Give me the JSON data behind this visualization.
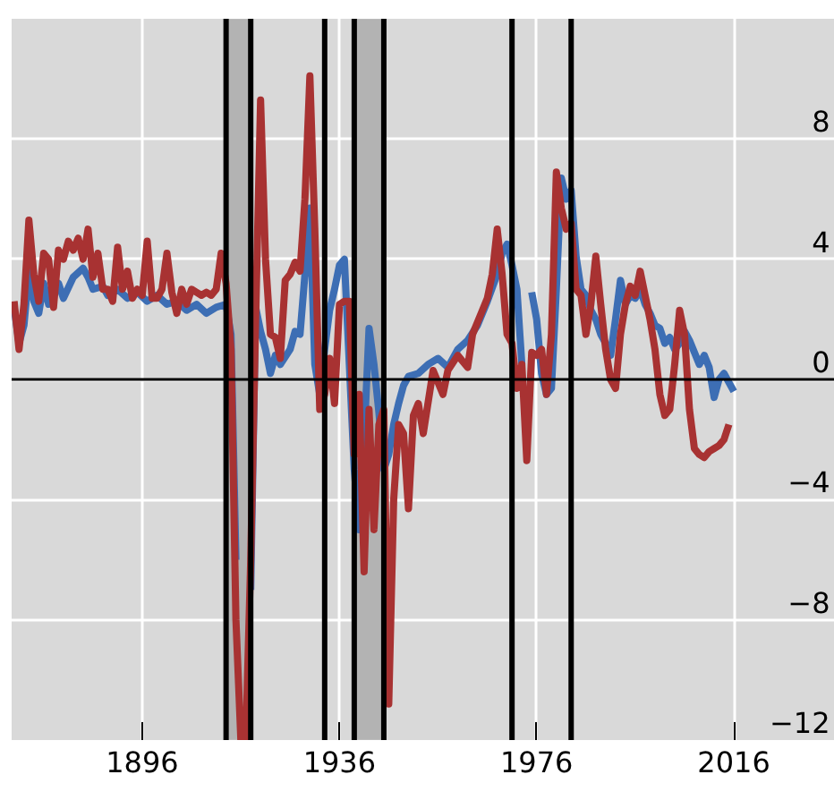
{
  "chart_data": {
    "type": "line",
    "xlim": [
      1869.5,
      2036.5
    ],
    "ylim": [
      -12,
      12
    ],
    "xticks": [
      1896,
      1936,
      1976,
      2016
    ],
    "yticks": [
      -12,
      -8,
      -4,
      0,
      4,
      8
    ],
    "grid": true,
    "bands": [
      {
        "axis": "x",
        "from": 1913,
        "to": 1918,
        "color": "#b3b3b3"
      },
      {
        "axis": "x",
        "from": 1939,
        "to": 1945,
        "color": "#b3b3b3"
      }
    ],
    "ref_lines": [
      {
        "axis": "y",
        "value": 0,
        "color": "#000000"
      },
      {
        "axis": "x",
        "value": 1913,
        "color": "#000000"
      },
      {
        "axis": "x",
        "value": 1918,
        "color": "#000000"
      },
      {
        "axis": "x",
        "value": 1933,
        "color": "#000000"
      },
      {
        "axis": "x",
        "value": 1939,
        "color": "#000000"
      },
      {
        "axis": "x",
        "value": 1945,
        "color": "#000000"
      },
      {
        "axis": "x",
        "value": 1971,
        "color": "#000000"
      },
      {
        "axis": "x",
        "value": 1983,
        "color": "#000000"
      }
    ],
    "series": [
      {
        "color": "#3d6eb4",
        "x": [
          1870,
          1871,
          1872,
          1873,
          1874,
          1875,
          1876,
          1877,
          1879,
          1880,
          1882,
          1884,
          1885,
          1886,
          1888,
          1889,
          1891,
          1893,
          1895,
          1897,
          1899,
          1901,
          1903,
          1905,
          1907,
          1909,
          1911,
          1913,
          1914,
          1915,
          1916,
          1917,
          1918,
          1919,
          1920,
          1921,
          1922,
          1923,
          1924,
          1926,
          1927,
          1928,
          1929,
          1930,
          1931,
          1932,
          1933,
          1934,
          1935,
          1936,
          1937,
          1938,
          1939,
          1940,
          1941,
          1942,
          1943,
          1944,
          1945,
          1946,
          1947,
          1948,
          1949,
          1950,
          1952,
          1954,
          1956,
          1958,
          1960,
          1962,
          1964,
          1966,
          1968,
          1969,
          1970,
          1971,
          1972,
          1973,
          1974,
          1975,
          1976,
          1977,
          1978,
          1979,
          1980,
          1981,
          1982,
          1983,
          1984,
          1985,
          1986,
          1987,
          1988,
          1989,
          1990,
          1991,
          1992,
          1993,
          1994,
          1995,
          1996,
          1997,
          1998,
          1999,
          2000,
          2001,
          2002,
          2003,
          2004,
          2005,
          2006,
          2007,
          2008,
          2009,
          2010,
          2011,
          2012,
          2013,
          2014,
          2015,
          2016
        ],
        "values": [
          2.4,
          1.2,
          1.8,
          3.6,
          2.6,
          2.2,
          3.2,
          2.5,
          3.2,
          2.7,
          3.4,
          3.7,
          3.4,
          3.0,
          3.1,
          2.8,
          3.0,
          2.7,
          2.9,
          2.6,
          2.8,
          2.5,
          2.6,
          2.3,
          2.5,
          2.2,
          2.4,
          2.5,
          1.5,
          -6,
          null,
          null,
          -7,
          2.4,
          1.6,
          1.0,
          0.2,
          0.8,
          0.5,
          1.0,
          1.6,
          1.5,
          3.5,
          5.7,
          0.5,
          -0.5,
          1.0,
          2.3,
          3.0,
          3.8,
          4.0,
          0.5,
          -3,
          -5,
          -2,
          1.7,
          0.5,
          -1.1,
          -3,
          -2.5,
          -1.5,
          -0.8,
          -0.2,
          0.1,
          0.2,
          0.5,
          0.7,
          0.4,
          1.0,
          1.3,
          1.8,
          2.6,
          3.5,
          4.2,
          4.5,
          3.8,
          3.0,
          0.5,
          null,
          2.9,
          2.0,
          0.2,
          -0.5,
          -0.3,
          3.0,
          6.7,
          6.0,
          6.3,
          4.1,
          3.0,
          2.8,
          2.3,
          2.0,
          1.5,
          1.2,
          0.8,
          2.0,
          3.3,
          2.5,
          2.8,
          2.7,
          3.0,
          2.5,
          2.2,
          1.8,
          1.7,
          1.2,
          1.4,
          1.0,
          1.2,
          1.6,
          1.3,
          0.9,
          0.5,
          0.8,
          0.4,
          -0.6,
          0.0,
          0.2,
          -0.1,
          -0.4
        ]
      },
      {
        "color": "#a83232",
        "x": [
          1870,
          1871,
          1872,
          1873,
          1874,
          1875,
          1876,
          1877,
          1878,
          1879,
          1880,
          1881,
          1882,
          1883,
          1884,
          1885,
          1886,
          1887,
          1888,
          1889,
          1890,
          1891,
          1892,
          1893,
          1894,
          1895,
          1896,
          1897,
          1898,
          1899,
          1900,
          1901,
          1902,
          1903,
          1904,
          1905,
          1906,
          1907,
          1908,
          1909,
          1910,
          1911,
          1912,
          1913,
          1914,
          1915,
          1916,
          1917,
          1918,
          1919,
          1920,
          1921,
          1922,
          1923,
          1924,
          1925,
          1926,
          1927,
          1928,
          1929,
          1930,
          1931,
          1932,
          1933,
          1934,
          1935,
          1936,
          1937,
          1938,
          1939,
          1940,
          1941,
          1942,
          1943,
          1944,
          1945,
          1946,
          1947,
          1948,
          1949,
          1950,
          1951,
          1952,
          1953,
          1955,
          1957,
          1958,
          1960,
          1962,
          1963,
          1965,
          1966,
          1967,
          1968,
          1969,
          1970,
          1971,
          1972,
          1973,
          1974,
          1975,
          1976,
          1977,
          1978,
          1979,
          1980,
          1981,
          1982,
          1983,
          1984,
          1985,
          1986,
          1987,
          1988,
          1989,
          1990,
          1991,
          1992,
          1993,
          1994,
          1995,
          1996,
          1997,
          1998,
          1999,
          2000,
          2001,
          2002,
          2003,
          2004,
          2005,
          2006,
          2007,
          2008,
          2009,
          2010,
          2011,
          2012,
          2013,
          2014,
          2015
        ],
        "values": [
          2.6,
          1.0,
          2.5,
          5.3,
          3.5,
          2.6,
          4.2,
          4.0,
          2.4,
          4.3,
          4.0,
          4.6,
          4.3,
          4.7,
          4.0,
          5.0,
          3.4,
          4.2,
          3.0,
          3.0,
          2.6,
          4.4,
          3.0,
          3.6,
          2.7,
          3.0,
          2.8,
          4.6,
          2.7,
          2.7,
          3.0,
          4.2,
          2.9,
          2.2,
          3.0,
          2.5,
          3.0,
          2.9,
          2.8,
          2.9,
          2.8,
          3.0,
          4.2,
          3.2,
          1.0,
          -8,
          -12,
          -12,
          -6,
          2.0,
          9.3,
          4.0,
          1.5,
          1.4,
          0.7,
          3.3,
          3.5,
          3.9,
          3.6,
          6.0,
          10.1,
          5.0,
          -1.0,
          -0.5,
          0.7,
          -0.8,
          2.5,
          2.6,
          2.6,
          -2.5,
          -0.5,
          -6.4,
          -1.0,
          -5,
          -1.5,
          -1.0,
          -10.8,
          -4,
          -1.5,
          -1.8,
          -4.3,
          -1.2,
          -0.8,
          -1.8,
          0.3,
          -0.5,
          0.3,
          0.8,
          0.4,
          1.5,
          2.3,
          2.7,
          3.5,
          5.0,
          3.5,
          1.5,
          1.2,
          -0.3,
          0.5,
          -2.7,
          0.9,
          0.8,
          1.0,
          -0.5,
          1.5,
          6.9,
          5.7,
          5.0,
          5.2,
          3.0,
          2.8,
          1.5,
          2.5,
          4.1,
          2.5,
          1.0,
          0.0,
          -0.3,
          1.5,
          2.5,
          3.1,
          2.8,
          3.6,
          2.8,
          2.0,
          1.0,
          -0.5,
          -1.2,
          -1.0,
          0.5,
          2.3,
          1.5,
          -1.0,
          -2.3,
          -2.5,
          -2.6,
          -2.4,
          -2.3,
          -2.2,
          -2.0,
          -1.5
        ]
      }
    ]
  }
}
